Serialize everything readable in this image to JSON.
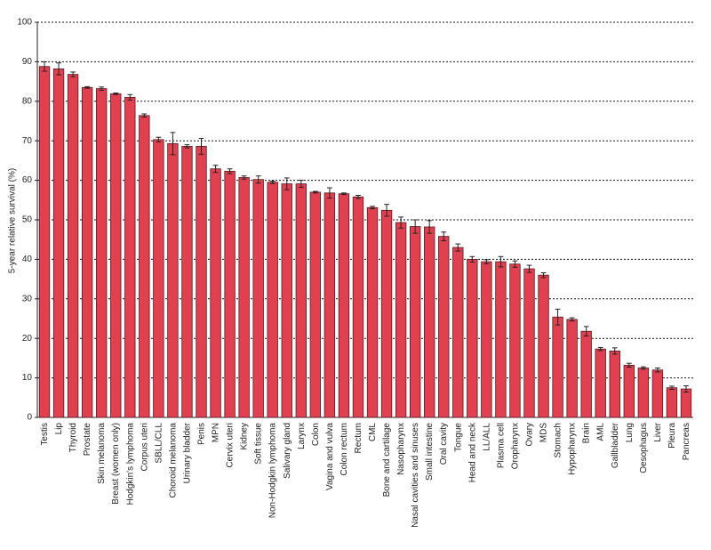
{
  "chart_data": {
    "type": "bar",
    "y_label": "5-year relative survival (%)",
    "categories": [
      "Testis",
      "Lip",
      "Thyroid",
      "Prostate",
      "Skin melanoma",
      "Breast (women only)",
      "Hodgkin's lymphoma",
      "Corpus uteri",
      "SBLL/CLL",
      "Choroid melanoma",
      "Urinary bladder",
      "Penis",
      "MPN",
      "Cervix uteri",
      "Kidney",
      "Soft tissue",
      "Non-Hodgkin lymphoma",
      "Salivary gland",
      "Larynx",
      "Colon",
      "Vagina and vulva",
      "Colon rectum",
      "Rectum",
      "CML",
      "Bone and cartilage",
      "Nasopharynx",
      "Nasal cavities and sinuses",
      "Small intestine",
      "Oral cavity",
      "Tongue",
      "Head and neck",
      "LL/ALL",
      "Plasma cell",
      "Oropharynx",
      "Ovary",
      "MDS",
      "Stomach",
      "Hypopharynx",
      "Brain",
      "AML",
      "Gallbladder",
      "Lung",
      "Oesophagus",
      "Liver",
      "Pleura",
      "Pancreas"
    ],
    "values": [
      88.8,
      88.2,
      86.8,
      83.5,
      83.2,
      81.9,
      81.0,
      76.4,
      70.3,
      69.3,
      68.6,
      68.6,
      62.9,
      62.3,
      60.7,
      60.2,
      59.5,
      59.1,
      59.1,
      57.0,
      56.8,
      56.6,
      55.8,
      53.1,
      52.4,
      49.3,
      48.3,
      48.2,
      45.8,
      43.0,
      40.0,
      39.4,
      39.4,
      38.8,
      37.6,
      36.0,
      25.4,
      24.8,
      21.8,
      17.3,
      16.8,
      13.2,
      12.5,
      12.0,
      7.5,
      7.2
    ],
    "errors": [
      1.2,
      1.5,
      0.6,
      0.2,
      0.4,
      0.2,
      0.7,
      0.4,
      0.6,
      2.8,
      0.4,
      2.0,
      0.9,
      0.6,
      0.4,
      0.9,
      0.3,
      1.5,
      0.9,
      0.2,
      1.3,
      0.2,
      0.4,
      0.3,
      1.5,
      1.4,
      1.7,
      1.6,
      1.1,
      0.9,
      0.7,
      0.5,
      1.3,
      0.8,
      0.9,
      0.6,
      2.0,
      0.4,
      1.2,
      0.4,
      0.8,
      0.5,
      0.3,
      0.5,
      0.4,
      0.8
    ],
    "color": "#e0404f",
    "ylim": [
      0,
      100
    ],
    "yticks": [
      0,
      10,
      20,
      30,
      40,
      50,
      60,
      70,
      80,
      90,
      100
    ],
    "grid": true
  }
}
